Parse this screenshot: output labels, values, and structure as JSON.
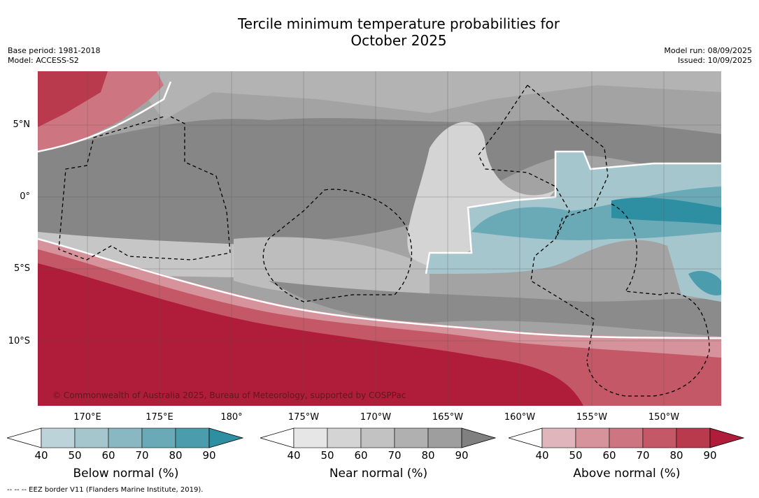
{
  "title_line1": "Tercile minimum temperature probabilities for",
  "title_line2": "October 2025",
  "base_period": "Base period: 1981-2018",
  "model": "Model: ACCESS-S2",
  "model_run": "Model run: 08/09/2025",
  "issued": "Issued: 10/09/2025",
  "lat_labels": [
    "5°N",
    "0°",
    "5°S",
    "10°S"
  ],
  "lon_labels": [
    "170°E",
    "175°E",
    "180°",
    "175°W",
    "170°W",
    "165°W",
    "160°W",
    "155°W",
    "150°W"
  ],
  "copyright": "© Commonwealth of Australia 2025, Bureau of Meteorology, supported by COSPPac",
  "colorbars": [
    {
      "label": "Below normal (%)",
      "ticks": [
        "40",
        "50",
        "60",
        "70",
        "80",
        "90"
      ],
      "colors": [
        "#bcd3d9",
        "#a5c6cd",
        "#89b8c2",
        "#6aaab7",
        "#4b9dad",
        "#2e8fa2"
      ]
    },
    {
      "label": "Near normal (%)",
      "ticks": [
        "40",
        "50",
        "60",
        "70",
        "80",
        "90"
      ],
      "colors": [
        "#e6e6e6",
        "#d4d4d4",
        "#c2c2c2",
        "#b0b0b0",
        "#9e9e9e",
        "#808080"
      ]
    },
    {
      "label": "Above normal (%)",
      "ticks": [
        "40",
        "50",
        "60",
        "70",
        "80",
        "90"
      ],
      "colors": [
        "#e0b6bc",
        "#d7939b",
        "#cd7580",
        "#c45866",
        "#ba3a4d",
        "#b01d3a"
      ]
    }
  ],
  "footnote": "--  --  -- EEZ border V11 (Flanders Marine Institute, 2019).",
  "colors": {
    "sea_red": "#b01d3a",
    "deep_grey": "#858585",
    "teal": "#2e8fa2"
  }
}
